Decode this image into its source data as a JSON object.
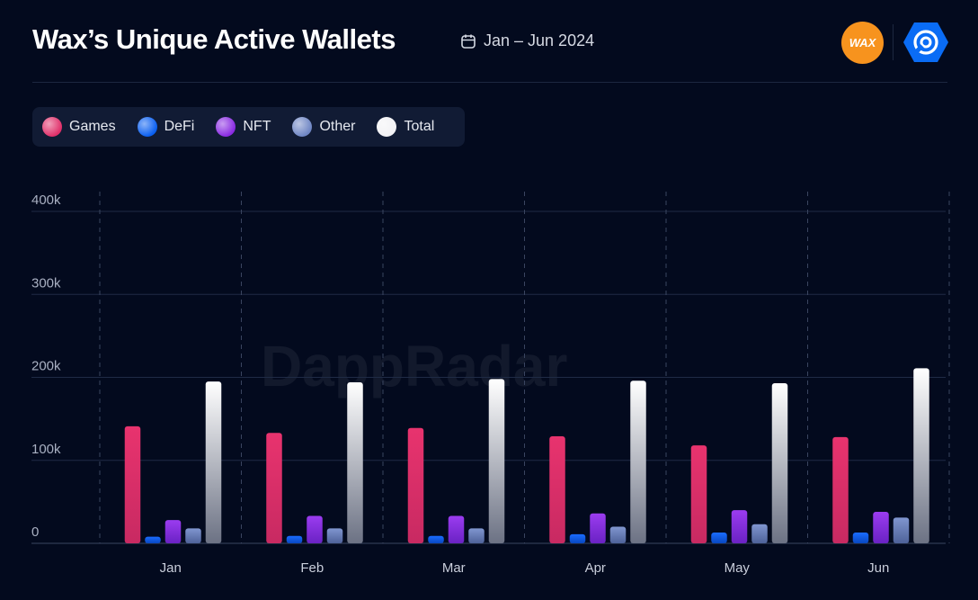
{
  "header": {
    "title": "Wax’s Unique Active Wallets",
    "date_range": "Jan – Jun 2024",
    "wax_logo": "WAX",
    "watermark": "DappRadar"
  },
  "icons": {
    "date": "calendar-icon",
    "brand": "dappradar-logo-icon"
  },
  "colors": {
    "Games": "#e0306a",
    "DeFi": "#0a5ff0",
    "NFT": "#8a2be2",
    "Other": "#6f86c4",
    "Total": "#f2f2f5",
    "background": "#030a1e"
  },
  "chart_data": {
    "type": "bar",
    "title": "Wax’s Unique Active Wallets",
    "categories": [
      "Jan",
      "Feb",
      "Mar",
      "Apr",
      "May",
      "Jun"
    ],
    "series": [
      {
        "name": "Games",
        "values": [
          141000,
          133000,
          139000,
          129000,
          118000,
          128000
        ]
      },
      {
        "name": "DeFi",
        "values": [
          8000,
          9000,
          9000,
          11000,
          13000,
          13000
        ]
      },
      {
        "name": "NFT",
        "values": [
          28000,
          33000,
          33000,
          36000,
          40000,
          38000
        ]
      },
      {
        "name": "Other",
        "values": [
          18000,
          18000,
          18000,
          20000,
          23000,
          31000
        ]
      },
      {
        "name": "Total",
        "values": [
          195000,
          194000,
          198000,
          196000,
          193000,
          211000
        ]
      }
    ],
    "yticks": [
      "0",
      "100k",
      "200k",
      "300k",
      "400k"
    ],
    "ylim": [
      0,
      400000
    ],
    "grid": true,
    "legend": "top-left"
  }
}
